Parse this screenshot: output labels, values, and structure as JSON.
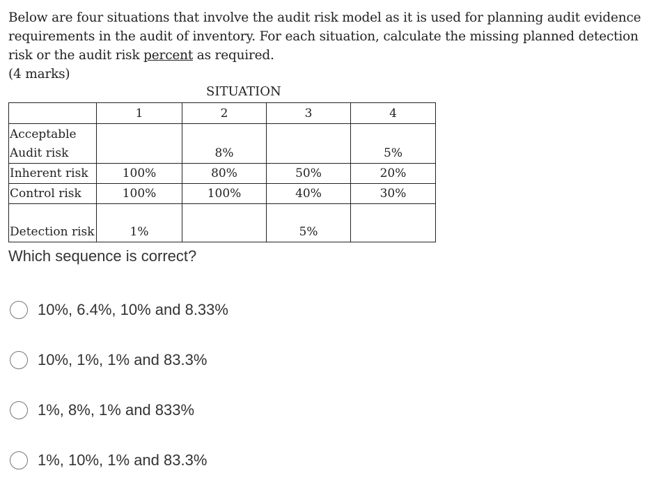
{
  "question": {
    "text_before": "Below are four situations that involve the audit risk model as it is used for planning audit evidence requirements in the audit of inventory. For each situation, calculate the missing planned detection risk or the audit risk ",
    "underlined": "percent",
    "text_after": " as required.",
    "marks": "(4 marks)"
  },
  "table": {
    "title": "SITUATION",
    "columns": [
      "1",
      "2",
      "3",
      "4"
    ],
    "rows": [
      {
        "label": "Acceptable Audit risk",
        "values": [
          "",
          "8%",
          "",
          "5%"
        ]
      },
      {
        "label": "Inherent risk",
        "values": [
          "100%",
          "80%",
          "50%",
          "20%"
        ]
      },
      {
        "label": "Control risk",
        "values": [
          "100%",
          "100%",
          "40%",
          "30%"
        ]
      },
      {
        "label": "Detection risk",
        "values": [
          "1%",
          "",
          "5%",
          ""
        ]
      }
    ]
  },
  "prompt": "Which sequence is correct?",
  "options": [
    "10%, 6.4%, 10% and 8.33%",
    "10%, 1%, 1% and 83.3%",
    "1%, 8%, 1% and 833%",
    "1%, 10%, 1% and 83.3%"
  ]
}
